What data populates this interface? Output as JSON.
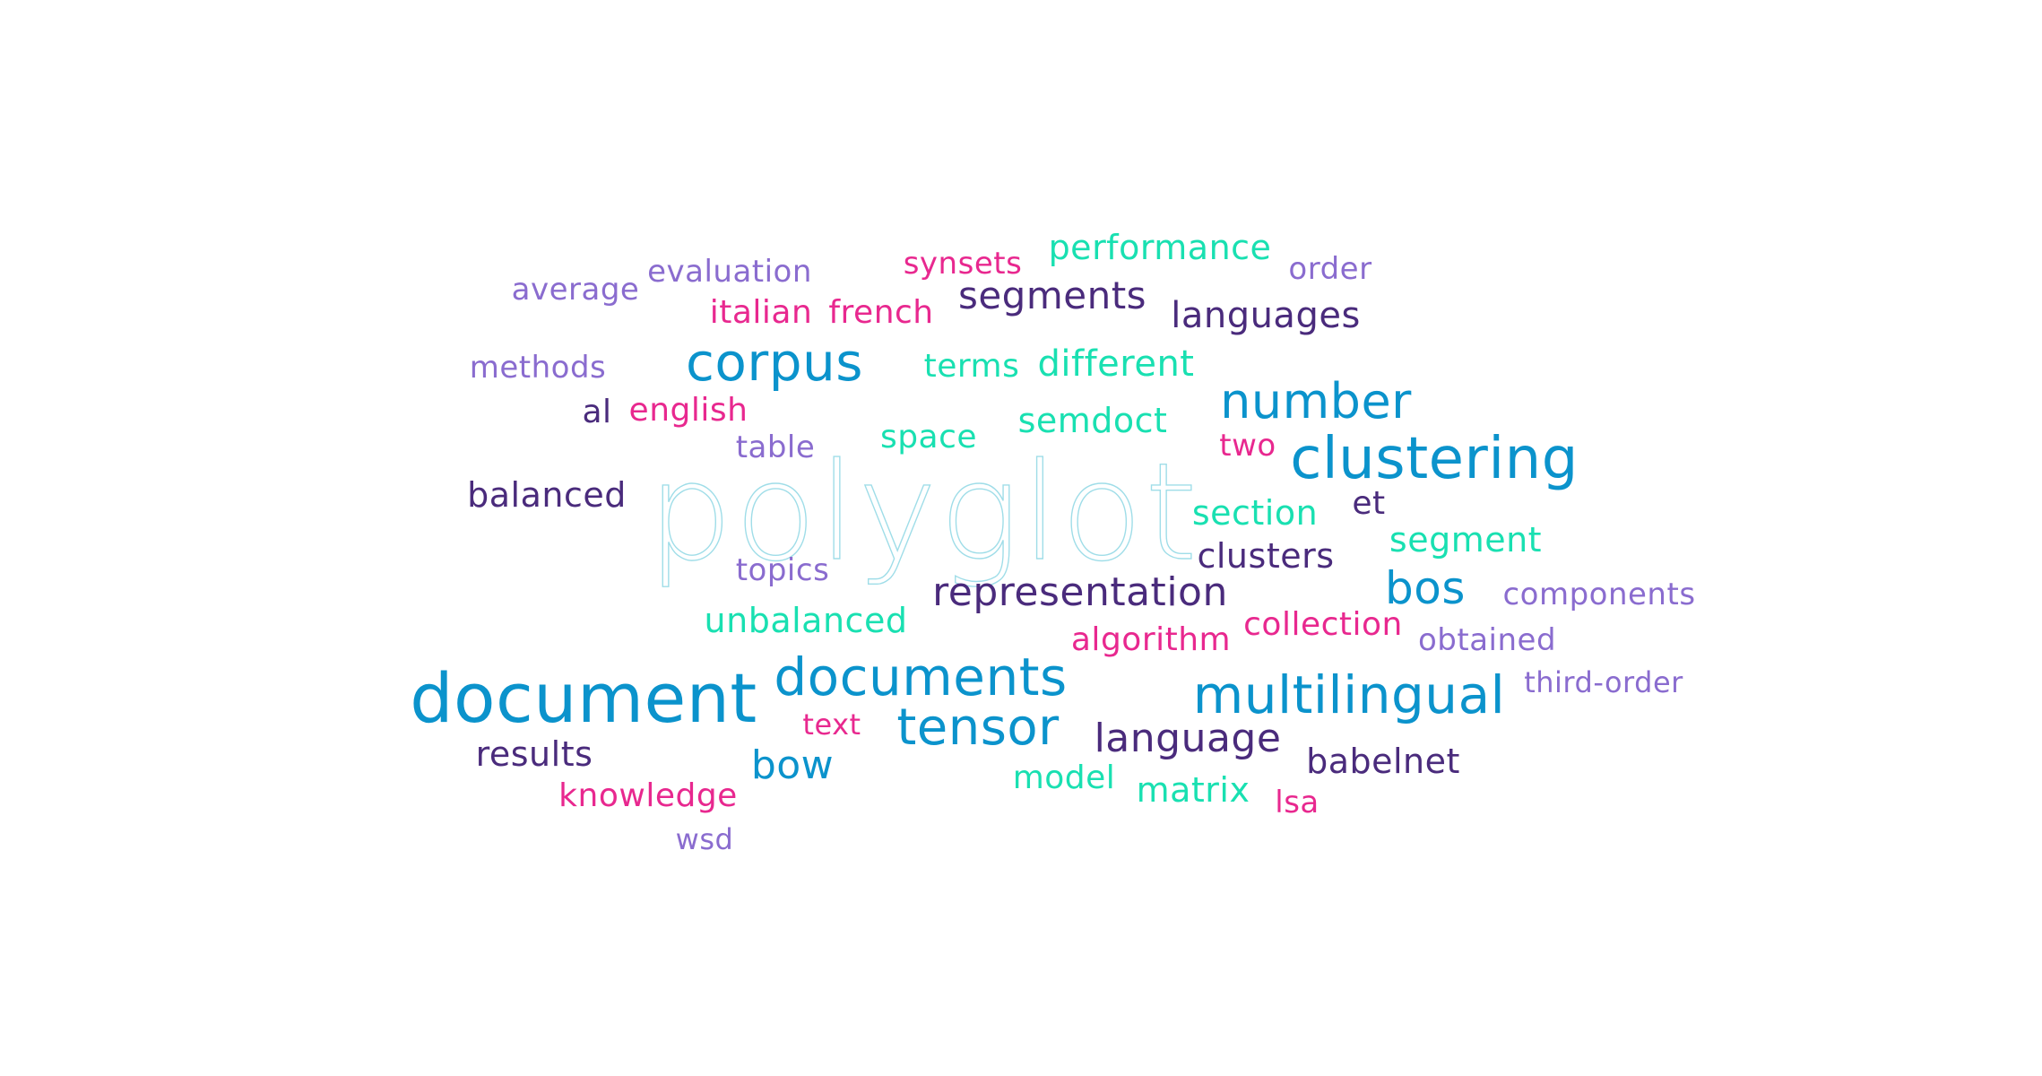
{
  "palette": {
    "blue": "#0b93cc",
    "teal": "#19e0b1",
    "navy": "#4a2b7c",
    "lavender": "#8a6ccf",
    "pink": "#e8288f",
    "outline": "#9fdde8"
  },
  "words": [
    {
      "text": "polyglot",
      "color": "outline",
      "style": "outline"
    },
    {
      "text": "document",
      "color": "blue"
    },
    {
      "text": "clustering",
      "color": "blue"
    },
    {
      "text": "multilingual",
      "color": "blue"
    },
    {
      "text": "documents",
      "color": "blue"
    },
    {
      "text": "corpus",
      "color": "blue"
    },
    {
      "text": "tensor",
      "color": "blue"
    },
    {
      "text": "number",
      "color": "blue"
    },
    {
      "text": "bos",
      "color": "blue"
    },
    {
      "text": "bow",
      "color": "blue"
    },
    {
      "text": "representation",
      "color": "navy"
    },
    {
      "text": "language",
      "color": "navy"
    },
    {
      "text": "segments",
      "color": "navy"
    },
    {
      "text": "languages",
      "color": "navy"
    },
    {
      "text": "balanced",
      "color": "navy"
    },
    {
      "text": "clusters",
      "color": "navy"
    },
    {
      "text": "babelnet",
      "color": "navy"
    },
    {
      "text": "results",
      "color": "navy"
    },
    {
      "text": "al",
      "color": "navy"
    },
    {
      "text": "et",
      "color": "navy"
    },
    {
      "text": "performance",
      "color": "teal"
    },
    {
      "text": "different",
      "color": "teal"
    },
    {
      "text": "semdoct",
      "color": "teal"
    },
    {
      "text": "unbalanced",
      "color": "teal"
    },
    {
      "text": "segment",
      "color": "teal"
    },
    {
      "text": "section",
      "color": "teal"
    },
    {
      "text": "space",
      "color": "teal"
    },
    {
      "text": "terms",
      "color": "teal"
    },
    {
      "text": "matrix",
      "color": "teal"
    },
    {
      "text": "model",
      "color": "teal"
    },
    {
      "text": "italian",
      "color": "pink"
    },
    {
      "text": "french",
      "color": "pink"
    },
    {
      "text": "english",
      "color": "pink"
    },
    {
      "text": "synsets",
      "color": "pink"
    },
    {
      "text": "two",
      "color": "pink"
    },
    {
      "text": "algorithm",
      "color": "pink"
    },
    {
      "text": "collection",
      "color": "pink"
    },
    {
      "text": "text",
      "color": "pink"
    },
    {
      "text": "knowledge",
      "color": "pink"
    },
    {
      "text": "lsa",
      "color": "pink"
    },
    {
      "text": "average",
      "color": "lavender"
    },
    {
      "text": "evaluation",
      "color": "lavender"
    },
    {
      "text": "order",
      "color": "lavender"
    },
    {
      "text": "methods",
      "color": "lavender"
    },
    {
      "text": "table",
      "color": "lavender"
    },
    {
      "text": "topics",
      "color": "lavender"
    },
    {
      "text": "components",
      "color": "lavender"
    },
    {
      "text": "obtained",
      "color": "lavender"
    },
    {
      "text": "third-order",
      "color": "lavender"
    },
    {
      "text": "wsd",
      "color": "lavender"
    }
  ]
}
